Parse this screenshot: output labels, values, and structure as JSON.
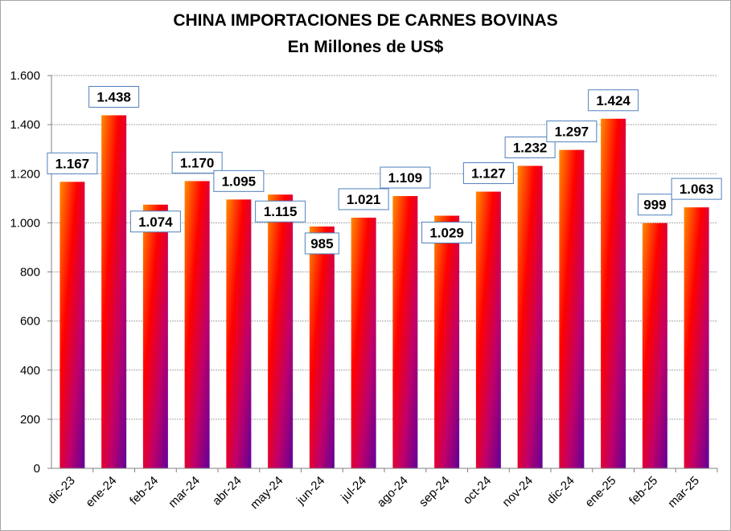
{
  "chart_data": {
    "type": "bar",
    "title": "CHINA IMPORTACIONES DE CARNES BOVINAS",
    "subtitle": "En Millones de US$",
    "categories": [
      "dic-23",
      "ene-24",
      "feb-24",
      "mar-24",
      "abr-24",
      "may-24",
      "jun-24",
      "jul-24",
      "ago-24",
      "sep-24",
      "oct-24",
      "nov-24",
      "dic-24",
      "ene-25",
      "feb-25",
      "mar-25"
    ],
    "values": [
      1167,
      1438,
      1074,
      1170,
      1095,
      1115,
      985,
      1021,
      1109,
      1029,
      1127,
      1232,
      1297,
      1424,
      999,
      1063
    ],
    "value_labels": [
      "1.167",
      "1.438",
      "1.074",
      "1.170",
      "1.095",
      "1.115",
      "985",
      "1.021",
      "1.109",
      "1.029",
      "1.127",
      "1.232",
      "1.297",
      "1.424",
      "999",
      "1.063"
    ],
    "ylim": [
      0,
      1600
    ],
    "yticks": [
      0,
      200,
      400,
      600,
      800,
      1000,
      1200,
      1400,
      1600
    ],
    "ytick_labels": [
      "0",
      "200",
      "400",
      "600",
      "800",
      "1.000",
      "1.200",
      "1.400",
      "1.600"
    ],
    "grid": true,
    "legend": "none",
    "bar_gradient": [
      "#ff8c00",
      "#ff0000",
      "#c0006a",
      "#600099"
    ]
  }
}
